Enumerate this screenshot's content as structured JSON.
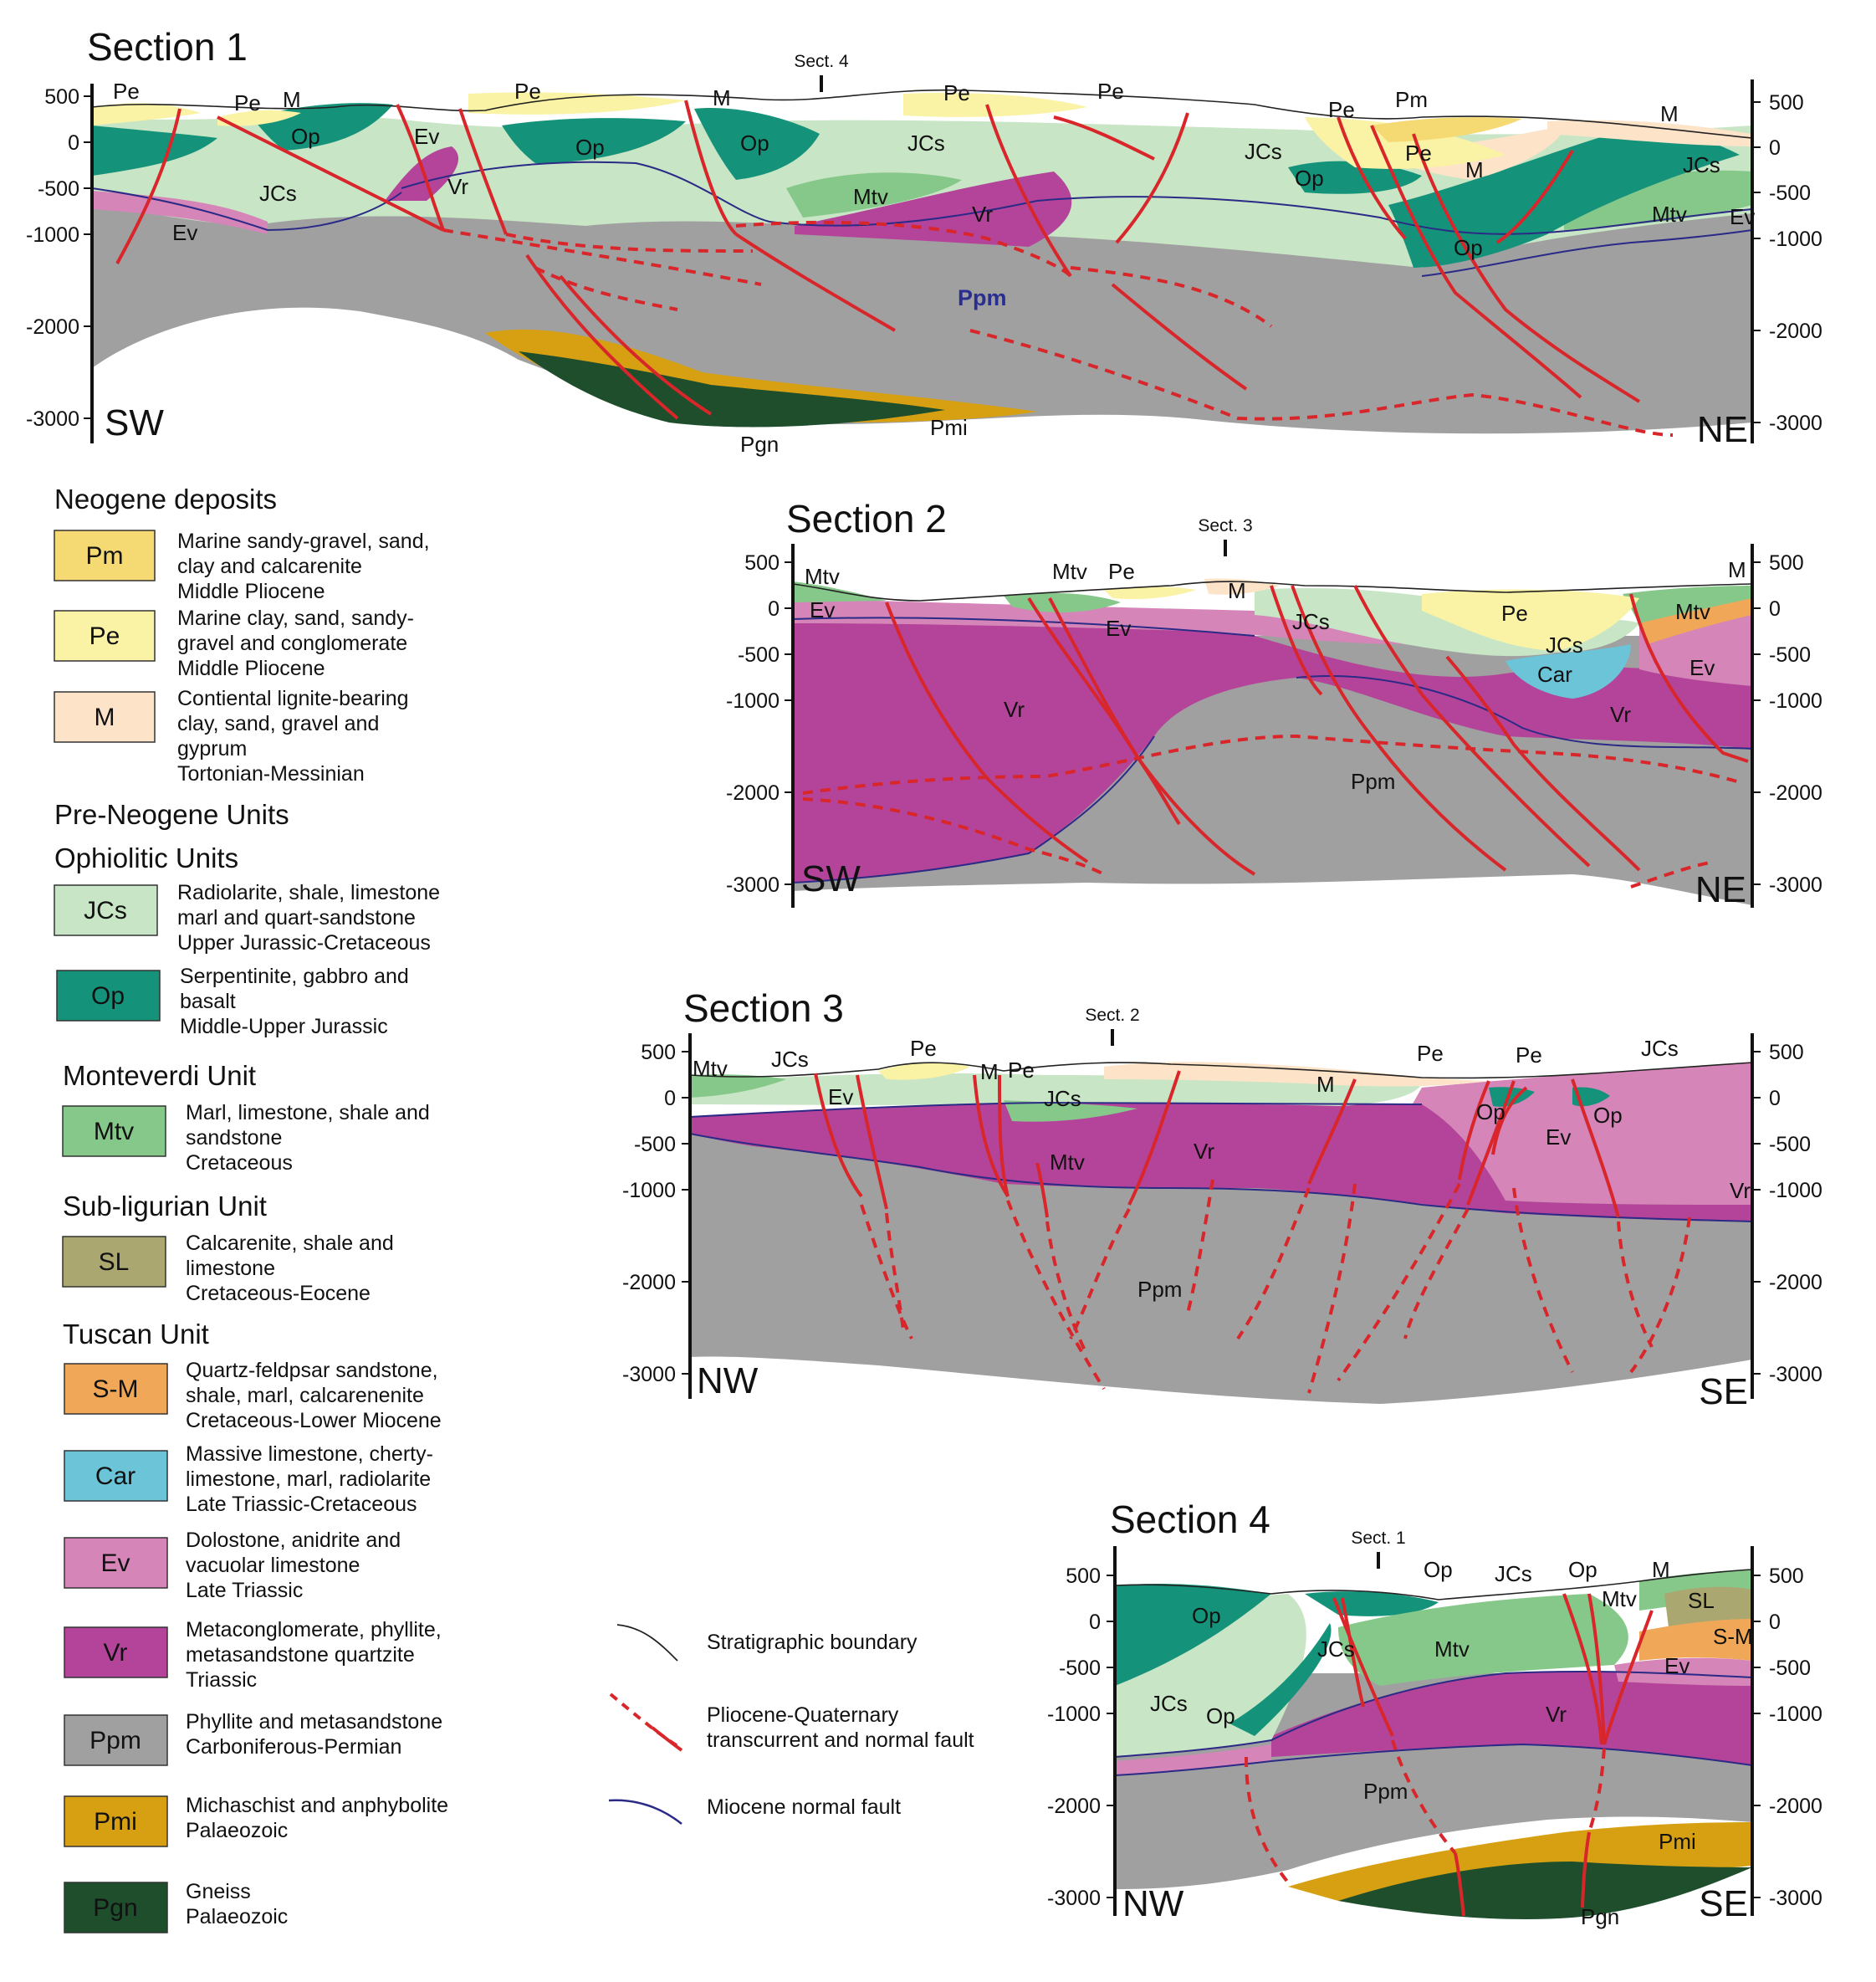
{
  "sections": [
    {
      "title": "Section 1",
      "left_dir": "SW",
      "right_dir": "NE",
      "marker": "Sect. 4",
      "left_ticks": [
        "500",
        "0",
        "-500",
        "-1000",
        "-2000",
        "-3000"
      ],
      "right_ticks": [
        "500",
        "0",
        "-500",
        "-1000",
        "-2000",
        "-3000"
      ],
      "labels": [
        "Pe",
        "Pe",
        "M",
        "Op",
        "Ev",
        "Pe",
        "Op",
        "M",
        "Op",
        "JCs",
        "Pe",
        "Pe",
        "JCs",
        "Pe",
        "Pm",
        "M",
        "Pe",
        "M",
        "Op",
        "JCs",
        "JCs",
        "Vr",
        "Ev",
        "Mtv",
        "Vr",
        "Op",
        "Mtv",
        "Ev",
        "Ppm",
        "Pgn",
        "Pmi"
      ]
    },
    {
      "title": "Section 2",
      "left_dir": "SW",
      "right_dir": "NE",
      "marker": "Sect. 3",
      "left_ticks": [
        "500",
        "0",
        "-500",
        "-1000",
        "-2000",
        "-3000"
      ],
      "right_ticks": [
        "500",
        "0",
        "-500",
        "-1000",
        "-2000",
        "-3000"
      ],
      "labels": [
        "Mtv",
        "Ev",
        "Mtv",
        "Pe",
        "Ev",
        "M",
        "JCs",
        "Pe",
        "JCs",
        "Car",
        "M",
        "Mtv",
        "Ev",
        "Vr",
        "Vr",
        "Ppm"
      ]
    },
    {
      "title": "Section 3",
      "left_dir": "NW",
      "right_dir": "SE",
      "marker": "Sect. 2",
      "left_ticks": [
        "500",
        "0",
        "-500",
        "-1000",
        "-2000",
        "-3000"
      ],
      "right_ticks": [
        "500",
        "0",
        "-500",
        "-1000",
        "-2000",
        "-3000"
      ],
      "labels": [
        "Mtv",
        "JCs",
        "Pe",
        "M",
        "Pe",
        "Ev",
        "JCs",
        "M",
        "Pe",
        "Pe",
        "JCs",
        "Op",
        "Op",
        "Ev",
        "Mtv",
        "Vr",
        "Vr",
        "Ppm"
      ]
    },
    {
      "title": "Section 4",
      "left_dir": "NW",
      "right_dir": "SE",
      "marker": "Sect. 1",
      "left_ticks": [
        "500",
        "0",
        "-500",
        "-1000",
        "-2000",
        "-3000"
      ],
      "right_ticks": [
        "500",
        "0",
        "-500",
        "-1000",
        "-2000",
        "-3000"
      ],
      "labels": [
        "Op",
        "JCs",
        "Op",
        "M",
        "Op",
        "SL",
        "JCs",
        "Mtv",
        "Mtv",
        "S-M",
        "Ev",
        "JCs",
        "Op",
        "Vr",
        "Ppm",
        "Pmi",
        "Pgn"
      ]
    }
  ],
  "legend": {
    "groups": [
      {
        "heading": "Neogene deposits",
        "items": [
          {
            "code": "Pm",
            "color": "#f5da73",
            "lines": [
              "Marine sandy-gravel, sand,",
              "clay and calcarenite",
              "Middle Pliocene"
            ]
          },
          {
            "code": "Pe",
            "color": "#faf3a5",
            "lines": [
              "Marine clay, sand, sandy-",
              "gravel and conglomerate",
              "Middle Pliocene"
            ]
          },
          {
            "code": "M",
            "color": "#fde3c8",
            "lines": [
              "Contiental lignite-bearing",
              "clay, sand, gravel and",
              "gyprum",
              "Tortonian-Messinian"
            ]
          }
        ]
      },
      {
        "heading": "Pre-Neogene Units",
        "items": []
      },
      {
        "heading": "Ophiolitic Units",
        "items": [
          {
            "code": "JCs",
            "color": "#c8e5c5",
            "lines": [
              "Radiolarite, shale, limestone",
              "marl and quart-sandstone",
              "Upper Jurassic-Cretaceous"
            ]
          },
          {
            "code": "Op",
            "color": "#15937a",
            "lines": [
              "Serpentinite, gabbro and",
              "basalt",
              "Middle-Upper Jurassic"
            ]
          }
        ]
      },
      {
        "heading": "Monteverdi Unit",
        "items": [
          {
            "code": "Mtv",
            "color": "#86c88a",
            "lines": [
              "Marl, limestone, shale and",
              "sandstone",
              "Cretaceous"
            ]
          }
        ]
      },
      {
        "heading": "Sub-ligurian Unit",
        "items": [
          {
            "code": "SL",
            "color": "#aaa870",
            "lines": [
              "Calcarenite, shale and",
              "limestone",
              "Cretaceous-Eocene"
            ]
          }
        ]
      },
      {
        "heading": "Tuscan Unit",
        "items": [
          {
            "code": "S-M",
            "color": "#f0a858",
            "lines": [
              "Quartz-feldpsar sandstone,",
              "shale, marl, calcarenenite",
              "Cretaceous-Lower Miocene"
            ]
          },
          {
            "code": "Car",
            "color": "#6cc4d8",
            "lines": [
              "Massive limestone, cherty-",
              "limestone, marl, radiolarite",
              "Late Triassic-Cretaceous"
            ]
          },
          {
            "code": "Ev",
            "color": "#d585b8",
            "lines": [
              "Dolostone, anidrite and",
              "vacuolar limestone",
              "Late Triassic"
            ]
          },
          {
            "code": "Vr",
            "color": "#b4449a",
            "lines": [
              "Metaconglomerate, phyllite,",
              "metasandstone quartzite",
              "Triassic"
            ]
          },
          {
            "code": "Ppm",
            "color": "#a0a0a0",
            "lines": [
              "Phyllite and metasandstone",
              "Carboniferous-Permian"
            ]
          },
          {
            "code": "Pmi",
            "color": "#d6a012",
            "lines": [
              "Michaschist and anphybolite",
              "Palaeozoic"
            ]
          },
          {
            "code": "Pgn",
            "color": "#1f4e2c",
            "lines": [
              "Gneiss",
              "Palaeozoic"
            ]
          }
        ]
      }
    ]
  },
  "line_legend": [
    {
      "label": "Stratigraphic boundary"
    },
    {
      "label": "Pliocene-Quaternary transcurrent and normal fault",
      "lines": [
        "Pliocene-Quaternary",
        "transcurrent and normal fault"
      ]
    },
    {
      "label": "Miocene normal fault"
    }
  ]
}
